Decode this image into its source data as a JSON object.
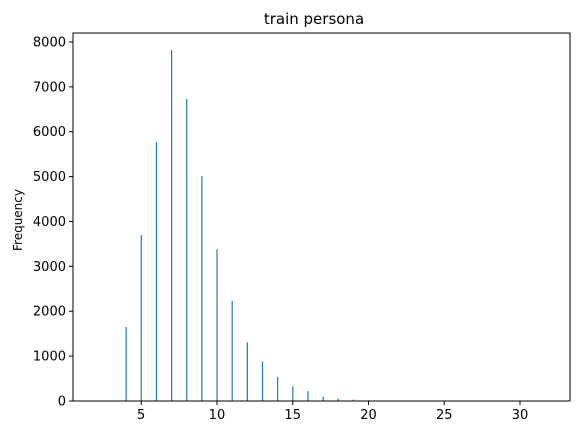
{
  "chart_data": {
    "type": "bar",
    "title": "train persona",
    "xlabel": "",
    "ylabel": "Frequency",
    "xlim": [
      0.5,
      33.3
    ],
    "ylim": [
      0,
      8200
    ],
    "x_ticks": [
      5,
      10,
      15,
      20,
      25,
      30
    ],
    "y_ticks": [
      0,
      1000,
      2000,
      3000,
      4000,
      5000,
      6000,
      7000,
      8000
    ],
    "grid": false,
    "bar_color": "#1f77b4",
    "x": [
      4,
      5,
      6,
      7,
      8,
      9,
      10,
      11,
      12,
      13,
      14,
      15,
      16,
      17,
      18,
      19,
      20,
      21,
      22,
      23,
      24,
      25,
      26,
      27,
      28,
      29,
      30,
      31,
      32
    ],
    "values": [
      1650,
      3700,
      5770,
      7820,
      6730,
      5010,
      3380,
      2230,
      1310,
      880,
      530,
      330,
      220,
      100,
      60,
      30,
      15,
      8,
      5,
      3,
      2,
      1,
      1,
      1,
      1,
      0,
      0,
      0,
      1
    ]
  }
}
